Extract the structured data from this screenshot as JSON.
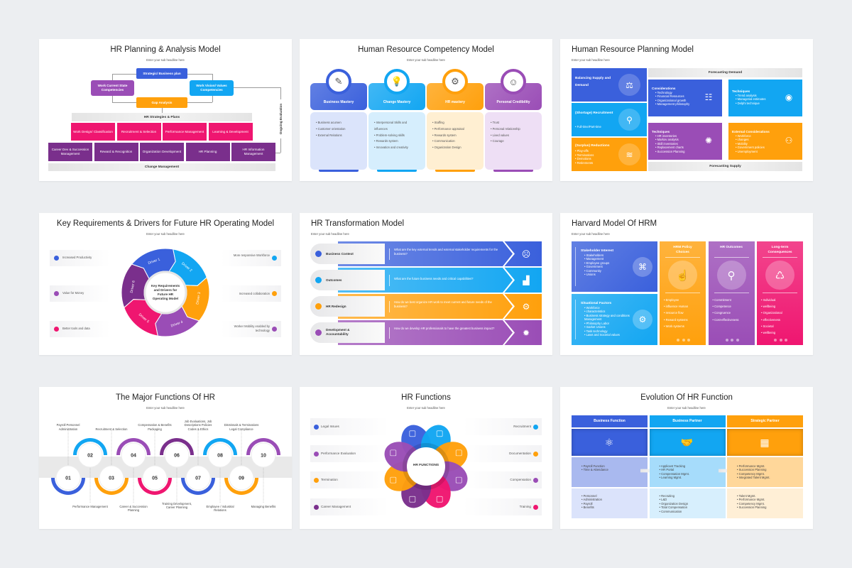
{
  "colors": {
    "blue": "#3a60dc",
    "cyan": "#12a6f2",
    "orange": "#ffa00c",
    "purple": "#9a4db6",
    "pink": "#ef1670",
    "darkpurple": "#7a2f8c",
    "gray": "#e6e6e6"
  },
  "planning_analysis": {
    "title": "HR Planning & Analysis Model",
    "subtitle": "Enter your sub headline here",
    "strategic": "Strategic/ Business plan",
    "current": "Work Current State Competencies",
    "vision": "Work Vision/ Values Competencies",
    "gap": "Gap Analysis",
    "strategies": "HR Strategies & Plans",
    "row1": [
      "Work Design/ Classification",
      "Recruitment & Selection",
      "Performance Management",
      "Learning & Development"
    ],
    "row2": [
      "Career Dev & Succession Management",
      "Reward & Recognition",
      "Organization Development",
      "HR Planning",
      "HR Information Management"
    ],
    "change": "Change Management",
    "ongoing": "Ongoing Evaluation"
  },
  "competency": {
    "title": "Human Resource Competency Model",
    "subtitle": "Enter your sub headline here",
    "columns": [
      {
        "heading": "Business Mastery",
        "icon": "document-pen-icon",
        "glyph": "✎",
        "items": [
          "Business acumen",
          "Customer orientation",
          "External Relations"
        ]
      },
      {
        "heading": "Change Mastery",
        "icon": "lightbulb-board-icon",
        "glyph": "💡",
        "items": [
          "Interpersonal Skills and influences",
          "Problem-solving skills",
          "Rewards system",
          "Innovation and creativity"
        ]
      },
      {
        "heading": "HR mastery",
        "icon": "team-network-icon",
        "glyph": "⚙",
        "items": [
          "Staffing",
          "Performance appraisal",
          "Rewards system",
          "Communication",
          "Organization Design"
        ]
      },
      {
        "heading": "Personal Credibility",
        "icon": "person-icon",
        "glyph": "☺",
        "items": [
          "Trust",
          "Personal relationship",
          "Lived values",
          "Courage"
        ]
      }
    ]
  },
  "resource_planning": {
    "title": "Human Resource Planning Model",
    "subtitle": "Enter your sub headline here",
    "left": [
      {
        "heading": "Balancing Supply and Demand",
        "items": [],
        "icon": "scales-icon",
        "glyph": "⚖"
      },
      {
        "heading": "(Shortage) Recruitment",
        "items": [
          "Full-time/Part-time"
        ],
        "icon": "faucet-icon",
        "glyph": "⚲"
      },
      {
        "heading": "(Surplus) Reductions",
        "items": [
          "Play-offs",
          "Terminations",
          "Demotions",
          "Retirements"
        ],
        "icon": "declining-coins-icon",
        "glyph": "≋"
      }
    ],
    "demand": "Forecasting Demand",
    "supply": "Forecasting Supply",
    "quads": [
      {
        "heading": "Considerations",
        "items": [
          "Technology",
          "Financial Resources",
          "Organizational growth",
          "Management philosophy"
        ],
        "icon": "people-ideas-icon",
        "glyph": "☷"
      },
      {
        "heading": "Techniques",
        "items": [
          "Trend analysis",
          "Managerial estimates",
          "Delphi technique"
        ],
        "icon": "brain-bulb-icon",
        "glyph": "◉"
      },
      {
        "heading": "Techniques",
        "items": [
          "HR inventories",
          "Markov analysis",
          "Skill inventories",
          "Replacement charts",
          "Succession Planning"
        ],
        "icon": "bulb-gear-icon",
        "glyph": "✺"
      },
      {
        "heading": "External Considerations",
        "items": [
          "Workforce",
          "changes",
          "Mobility",
          "Government policies",
          "Unemployment"
        ],
        "icon": "person-choice-icon",
        "glyph": "⚇"
      }
    ]
  },
  "drivers": {
    "title": "Key Requirements & Drivers for Future HR Operating Model",
    "subtitle": "Enter your sub headline here",
    "center": "Key Requirements and Drivers for Future HR Operating Model",
    "segments": [
      "Driver 1",
      "Driver 2",
      "Driver 3",
      "Driver 4",
      "Driver 5",
      "Driver 6"
    ],
    "left": [
      "Increased Productivity",
      "Value for Money",
      "Better tools and data"
    ],
    "right": [
      "More responsive Workforce",
      "Increased collaboration",
      "Worker Mobility enabled by technology"
    ]
  },
  "transformation": {
    "title": "HR Transformation Model",
    "subtitle": "Enter your sub headline here",
    "rows": [
      {
        "label": "Business Context",
        "question": "What are the key external trends and external stakeholder requirements for the business?",
        "icon": "head-gears-icon",
        "glyph": "☹"
      },
      {
        "label": "Outcomes",
        "question": "What are the future business needs and critical capabilities?",
        "icon": "chart-growth-icon",
        "glyph": "▟"
      },
      {
        "label": "HR Redesign",
        "question": "How do we best organize HR work to meet current and future needs of the business?",
        "icon": "magnifier-gear-icon",
        "glyph": "⚙"
      },
      {
        "label": "Development & Accountability",
        "question": "How do we develop HR professionals to have the greatest business impact?",
        "icon": "gear-chart-icon",
        "glyph": "✹"
      }
    ]
  },
  "harvard": {
    "title": "Harvard Model Of HRM",
    "subtitle": "Enter your sub headline here",
    "stakeholder": {
      "heading": "Stakeholder Interest",
      "items": [
        "Stakeholders",
        "Management",
        "Employee groups",
        "Government",
        "Community",
        "Unions"
      ],
      "icon": "network-icon",
      "glyph": "⌘"
    },
    "situational": {
      "heading": "Situational Factors",
      "items": [
        "Workforce",
        "characteristics",
        "Business strategy and conditions Management",
        "Philosophy Labor",
        "market Unions",
        "Task technology",
        "Laws and Societal values"
      ],
      "icon": "head-gear-icon",
      "glyph": "⚙"
    },
    "columns": [
      {
        "heading": "HRM Policy Choices",
        "items": [
          "Employee",
          "influence Human",
          "resource flow",
          "Reward systems",
          "Work systems"
        ],
        "icon": "hand-choice-icon",
        "glyph": "☝"
      },
      {
        "heading": "HR Outcomes",
        "items": [
          "Commitment",
          "Competence",
          "Congruence",
          "Cost-effectiveness"
        ],
        "icon": "analysis-icon",
        "glyph": "⚲"
      },
      {
        "heading": "Long-term Consequences",
        "items": [
          "Individual",
          "wellbeing",
          "Organizational",
          "effectiveness",
          "Societal",
          "wellbeing"
        ],
        "icon": "cycle-icon",
        "glyph": "♺"
      }
    ]
  },
  "major_functions": {
    "title": "The Major Functions Of HR",
    "subtitle": "Enter your sub headline here",
    "steps": [
      {
        "num": "01",
        "label": "Payroll Personnel Administration"
      },
      {
        "num": "02",
        "label": "Performance Management"
      },
      {
        "num": "03",
        "label": "Recruitment & Selection"
      },
      {
        "num": "04",
        "label": "Career & Succession Planning"
      },
      {
        "num": "05",
        "label": "Compensation & Benefits Packaging"
      },
      {
        "num": "06",
        "label": "Training Development, Career Planning"
      },
      {
        "num": "07",
        "label": "Job Evaluations, Job Descriptions Policies Codes & Ethics"
      },
      {
        "num": "08",
        "label": "Employee / Industrial Relations"
      },
      {
        "num": "09",
        "label": "Dismissals & Terminations Legal Compliance"
      },
      {
        "num": "10",
        "label": "Managing Benefits"
      }
    ]
  },
  "hr_functions": {
    "title": "HR Functions",
    "subtitle": "Enter your sub headline here",
    "center": "HR FUNCTIONS",
    "left": [
      "Legal Issues",
      "Performance Evaluation",
      "Termination",
      "Career Management"
    ],
    "right": [
      "Recruitment",
      "Documentation",
      "Compensation",
      "Training"
    ]
  },
  "evolution": {
    "title": "Evolution Of HR Function",
    "subtitle": "Enter your sub headline here",
    "columns": [
      {
        "heading": "Business Function",
        "icon": "atom-icon",
        "glyph": "⚛",
        "row1": [
          "Payroll Function",
          "Time & Attendance"
        ],
        "row2": [
          "Personnel",
          "Administration",
          "Payroll",
          "Benefits"
        ]
      },
      {
        "heading": "Business Partner",
        "icon": "handshake-icon",
        "glyph": "🤝",
        "row1": [
          "Applicant Tracking",
          "HR Portal",
          "Compensation Mgmt.",
          "Learning Mgmt."
        ],
        "row2": [
          "Recruiting",
          "L&D",
          "Organization Design",
          "Total Compensation",
          "Communication"
        ]
      },
      {
        "heading": "Strategic Partner",
        "icon": "strategy-board-icon",
        "glyph": "▦",
        "row1": [
          "Performance Mgmt.",
          "Succession Planning",
          "Competency Mgmt.",
          "Integrated Talent Mgmt."
        ],
        "row2": [
          "Talent Mgmt.",
          "Performance Mgmt.",
          "Competency Mgmt.",
          "Succession Planning"
        ]
      }
    ]
  }
}
